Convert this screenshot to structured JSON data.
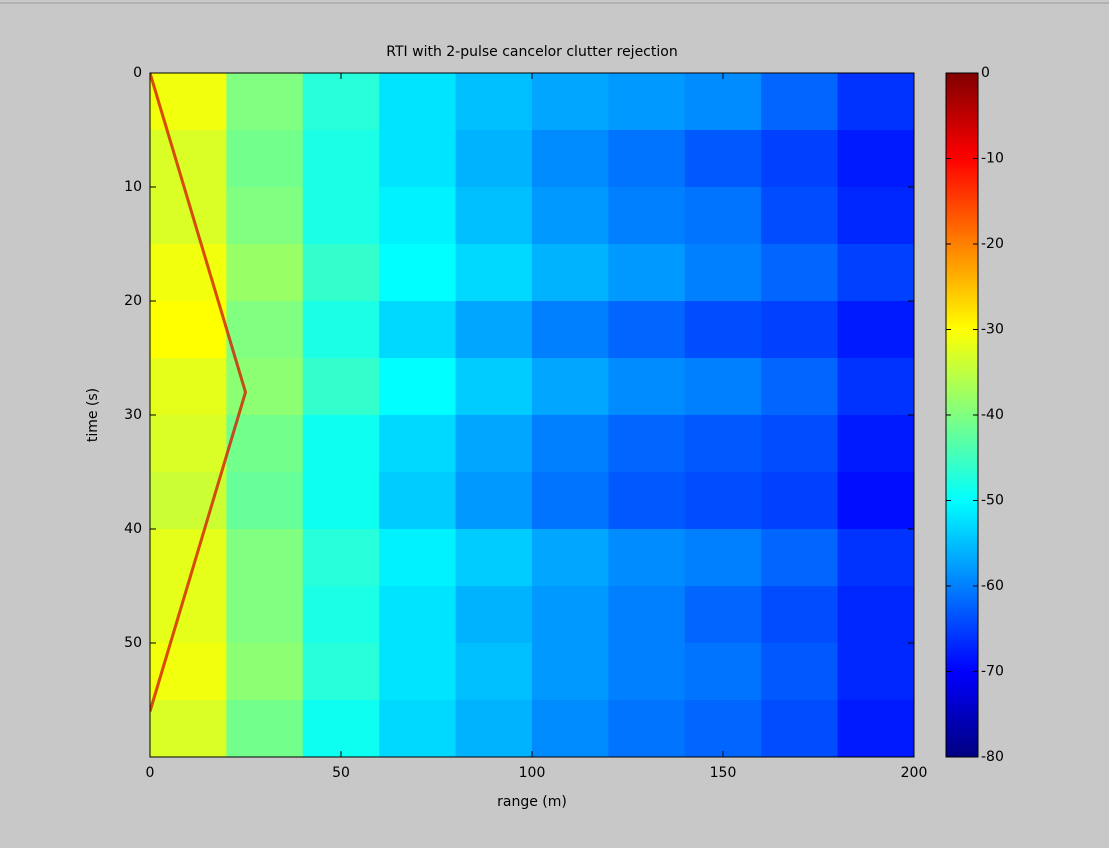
{
  "chart_data": {
    "type": "heatmap",
    "title": "RTI with 2-pulse cancelor clutter rejection",
    "x_label": "range (m)",
    "y_label": "time (s)",
    "xlim": [
      0,
      200
    ],
    "xticks": [
      0,
      50,
      100,
      150,
      200
    ],
    "ylim": [
      0,
      60
    ],
    "yticks": [
      0,
      10,
      20,
      30,
      40,
      50
    ],
    "y_reversed": true,
    "colormap": "jet",
    "clim": [
      -80,
      0
    ],
    "cticks": [
      0,
      -10,
      -20,
      -30,
      -40,
      -50,
      -60,
      -70,
      -80
    ],
    "values": [
      [
        -31,
        -40,
        -47,
        -52,
        -55,
        -57,
        -58,
        -59,
        -62,
        -66
      ],
      [
        -33,
        -41,
        -48,
        -52,
        -56,
        -59,
        -61,
        -63,
        -65,
        -68
      ],
      [
        -33,
        -40,
        -48,
        -51,
        -55,
        -58,
        -60,
        -61,
        -64,
        -67
      ],
      [
        -31,
        -38,
        -46,
        -50,
        -53,
        -56,
        -58,
        -60,
        -62,
        -65
      ],
      [
        -30,
        -40,
        -48,
        -53,
        -57,
        -60,
        -62,
        -64,
        -65,
        -68
      ],
      [
        -32,
        -39,
        -46,
        -50,
        -54,
        -57,
        -59,
        -60,
        -62,
        -66
      ],
      [
        -33,
        -41,
        -49,
        -53,
        -57,
        -60,
        -62,
        -63,
        -64,
        -68
      ],
      [
        -34,
        -42,
        -49,
        -54,
        -58,
        -61,
        -63,
        -64,
        -65,
        -69
      ],
      [
        -32,
        -40,
        -47,
        -51,
        -54,
        -57,
        -59,
        -60,
        -62,
        -66
      ],
      [
        -32,
        -40,
        -48,
        -52,
        -56,
        -58,
        -60,
        -62,
        -64,
        -67
      ],
      [
        -31,
        -39,
        -47,
        -52,
        -55,
        -58,
        -60,
        -61,
        -63,
        -67
      ],
      [
        -33,
        -41,
        -49,
        -53,
        -56,
        -59,
        -61,
        -62,
        -64,
        -68
      ]
    ],
    "track": {
      "range": [
        0,
        25,
        0
      ],
      "time": [
        0,
        28,
        56
      ],
      "color": "#d41e00"
    }
  }
}
